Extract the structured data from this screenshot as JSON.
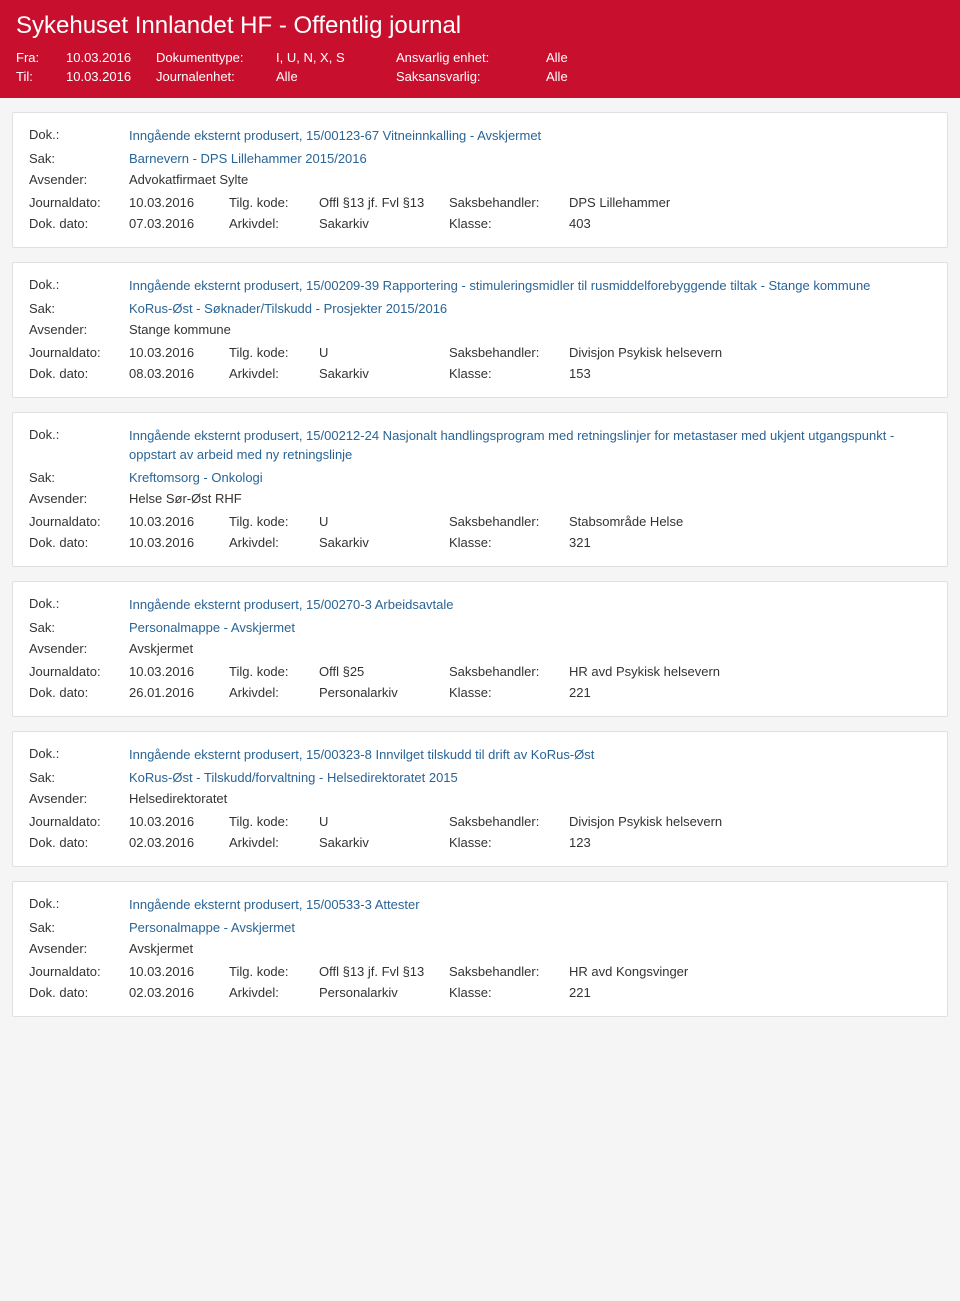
{
  "header": {
    "title": "Sykehuset Innlandet HF - Offentlig journal",
    "fra_label": "Fra:",
    "fra_value": "10.03.2016",
    "til_label": "Til:",
    "til_value": "10.03.2016",
    "doktype_label": "Dokumenttype:",
    "doktype_value": "I, U, N, X, S",
    "journalenhet_label": "Journalenhet:",
    "journalenhet_value": "Alle",
    "ansvarlig_label": "Ansvarlig enhet:",
    "ansvarlig_value": "Alle",
    "saksansvarlig_label": "Saksansvarlig:",
    "saksansvarlig_value": "Alle"
  },
  "labels": {
    "dok": "Dok.:",
    "sak": "Sak:",
    "avsender": "Avsender:",
    "journaldato": "Journaldato:",
    "dokdato": "Dok. dato:",
    "tilgkode": "Tilg. kode:",
    "arkivdel": "Arkivdel:",
    "saksbehandler": "Saksbehandler:",
    "klasse": "Klasse:"
  },
  "entries": [
    {
      "dok": "Inngående eksternt produsert, 15/00123-67 Vitneinnkalling - Avskjermet",
      "sak": "Barnevern - DPS Lillehammer 2015/2016",
      "avsender": "Advokatfirmaet Sylte",
      "journaldato": "10.03.2016",
      "tilgkode": "Offl §13 jf. Fvl §13",
      "saksbehandler": "DPS Lillehammer",
      "dokdato": "07.03.2016",
      "arkivdel": "Sakarkiv",
      "klasse": "403"
    },
    {
      "dok": "Inngående eksternt produsert, 15/00209-39 Rapportering - stimuleringsmidler til rusmiddelforebyggende tiltak - Stange kommune",
      "sak": "KoRus-Øst - Søknader/Tilskudd - Prosjekter 2015/2016",
      "avsender": "Stange kommune",
      "journaldato": "10.03.2016",
      "tilgkode": "U",
      "saksbehandler": "Divisjon Psykisk helsevern",
      "dokdato": "08.03.2016",
      "arkivdel": "Sakarkiv",
      "klasse": "153"
    },
    {
      "dok": "Inngående eksternt produsert, 15/00212-24 Nasjonalt handlingsprogram med retningslinjer for metastaser med ukjent utgangspunkt - oppstart av arbeid med ny retningslinje",
      "sak": "Kreftomsorg - Onkologi",
      "avsender": "Helse Sør-Øst RHF",
      "journaldato": "10.03.2016",
      "tilgkode": "U",
      "saksbehandler": "Stabsområde Helse",
      "dokdato": "10.03.2016",
      "arkivdel": "Sakarkiv",
      "klasse": "321"
    },
    {
      "dok": "Inngående eksternt produsert, 15/00270-3 Arbeidsavtale",
      "sak": "Personalmappe - Avskjermet",
      "avsender": "Avskjermet",
      "journaldato": "10.03.2016",
      "tilgkode": "Offl §25",
      "saksbehandler": "HR avd Psykisk helsevern",
      "dokdato": "26.01.2016",
      "arkivdel": "Personalarkiv",
      "klasse": "221"
    },
    {
      "dok": "Inngående eksternt produsert, 15/00323-8 Innvilget tilskudd til drift av KoRus-Øst",
      "sak": "KoRus-Øst - Tilskudd/forvaltning - Helsedirektoratet 2015",
      "avsender": "Helsedirektoratet",
      "journaldato": "10.03.2016",
      "tilgkode": "U",
      "saksbehandler": "Divisjon Psykisk helsevern",
      "dokdato": "02.03.2016",
      "arkivdel": "Sakarkiv",
      "klasse": "123"
    },
    {
      "dok": "Inngående eksternt produsert, 15/00533-3 Attester",
      "sak": "Personalmappe - Avskjermet",
      "avsender": "Avskjermet",
      "journaldato": "10.03.2016",
      "tilgkode": "Offl §13 jf. Fvl §13",
      "saksbehandler": "HR avd Kongsvinger",
      "dokdato": "02.03.2016",
      "arkivdel": "Personalarkiv",
      "klasse": "221"
    }
  ],
  "style": {
    "header_bg": "#c8102e",
    "header_text": "#ffffff",
    "body_bg": "#f5f5f5",
    "entry_bg": "#ffffff",
    "entry_border": "#e0e0e0",
    "link_color": "#2a6496",
    "text_color": "#333333",
    "title_fontsize": 24,
    "body_fontsize": 13
  }
}
